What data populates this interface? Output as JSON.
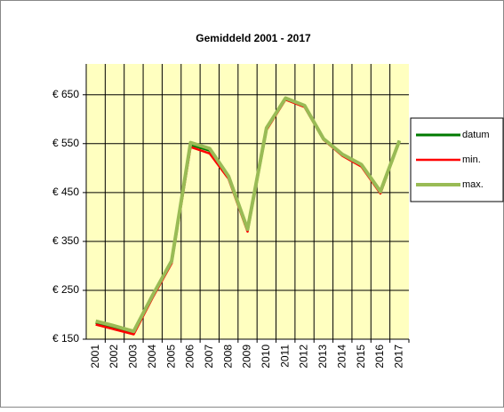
{
  "chart_data": {
    "type": "line",
    "title": "Gemiddeld 2001 - 2017",
    "categories": [
      "2001",
      "2002",
      "2003",
      "2004",
      "2005",
      "2006",
      "2007",
      "2008",
      "2009",
      "2010",
      "2011",
      "2012",
      "2013",
      "2014",
      "2015",
      "2016",
      "2017"
    ],
    "series": [
      {
        "name": "datum",
        "color": "#007a00",
        "values": [
          184,
          174,
          163,
          238,
          308,
          548,
          536,
          481,
          373,
          580,
          642,
          627,
          559,
          527,
          505,
          450,
          556
        ]
      },
      {
        "name": "min.",
        "color": "#ff0000",
        "values": [
          180,
          170,
          160,
          235,
          305,
          543,
          530,
          478,
          370,
          578,
          640,
          625,
          558,
          525,
          503,
          448,
          555
        ]
      },
      {
        "name": "max.",
        "color": "#99bb55",
        "values": [
          187,
          177,
          166,
          240,
          310,
          552,
          540,
          483,
          375,
          582,
          643,
          628,
          560,
          528,
          507,
          452,
          556
        ]
      }
    ],
    "ylim": [
      150,
      713
    ],
    "yticks": [
      {
        "value": 150,
        "label": "€ 150"
      },
      {
        "value": 250,
        "label": "€ 250"
      },
      {
        "value": 350,
        "label": "€ 350"
      },
      {
        "value": 450,
        "label": "€ 450"
      },
      {
        "value": 550,
        "label": "€ 550"
      },
      {
        "value": 650,
        "label": "€ 650"
      }
    ],
    "grid": true,
    "legend": "right"
  }
}
